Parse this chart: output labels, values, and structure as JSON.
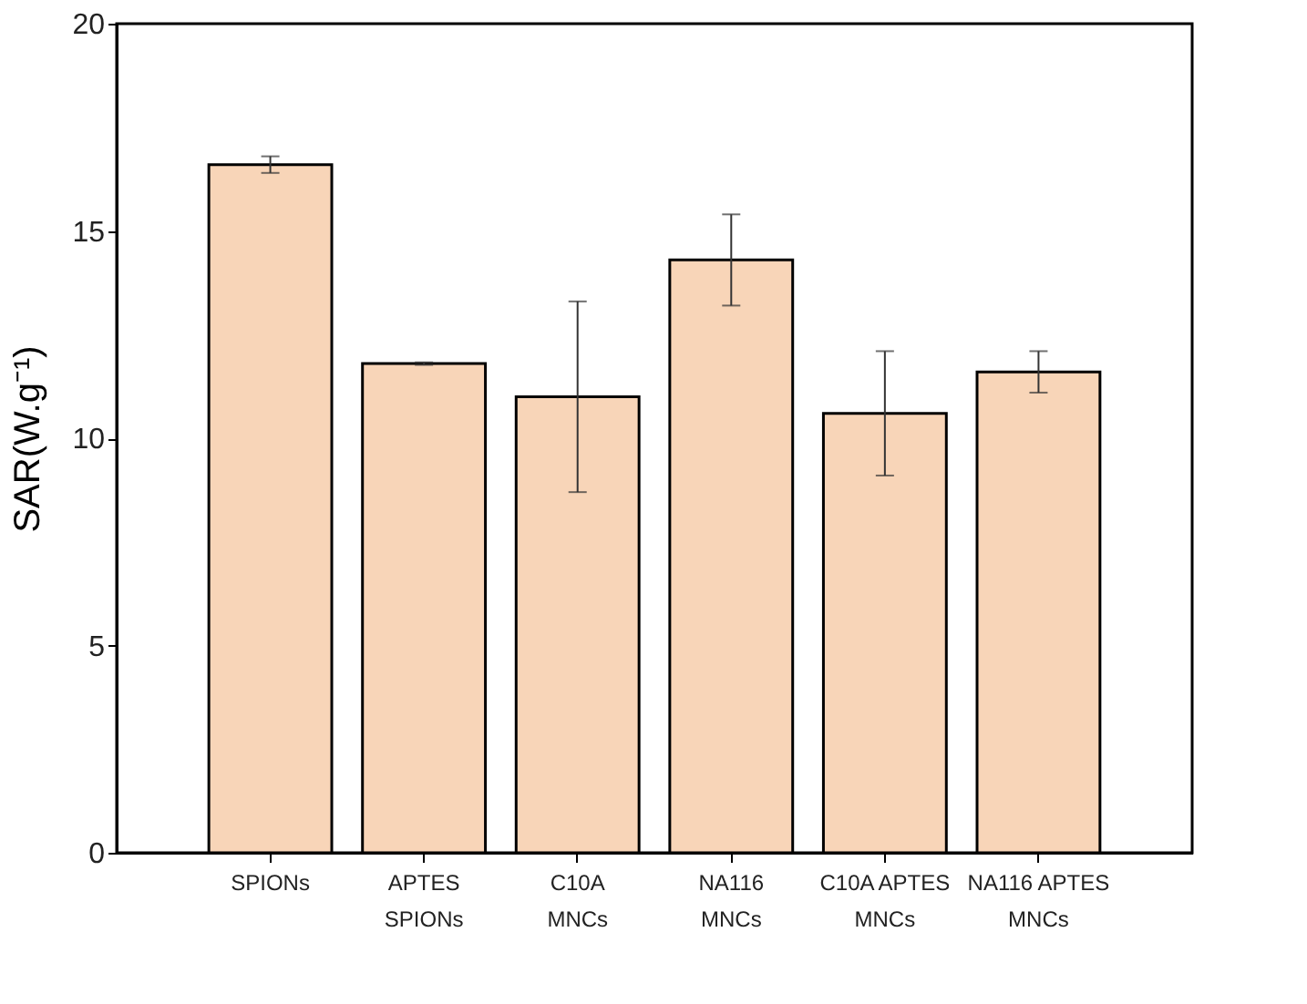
{
  "chart_data": {
    "type": "bar",
    "ylabel": "SAR(W.g⁻¹)",
    "categories": [
      "SPIONs",
      "APTES SPIONs",
      "C10A MNCs",
      "NA116 MNCs",
      "C10A APTES MNCs",
      "NA116 APTES MNCs"
    ],
    "values": [
      16.6,
      11.8,
      11.0,
      14.3,
      10.6,
      11.6
    ],
    "errors": [
      0.2,
      0.03,
      [
        8.7,
        13.3
      ],
      [
        13.2,
        15.4
      ],
      [
        9.1,
        12.1
      ],
      [
        11.1,
        12.1
      ]
    ],
    "color": "#f8d5b8",
    "ylim": [
      0,
      20
    ],
    "yticks": [
      0,
      5,
      10,
      15,
      20
    ],
    "grid": false
  }
}
